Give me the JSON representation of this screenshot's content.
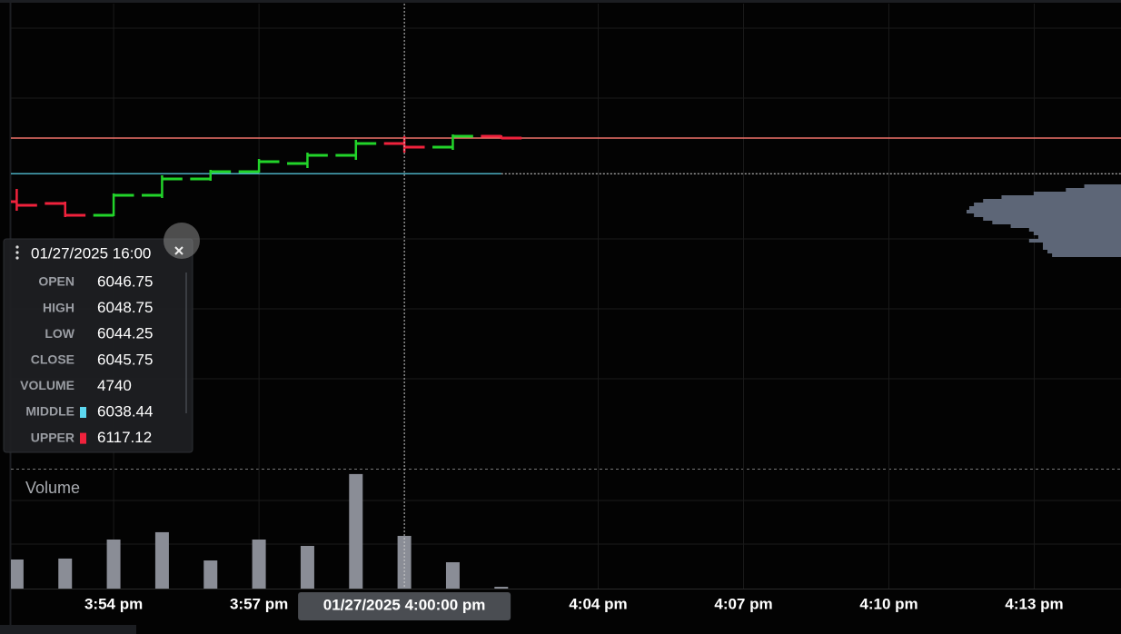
{
  "chart_data": {
    "type": "ohlc",
    "x": [
      952,
      953,
      954,
      955,
      956,
      957,
      958,
      959,
      960,
      961,
      962
    ],
    "open": [
      6030.75,
      6030.25,
      6027,
      6032.5,
      6037,
      6039,
      6041.25,
      6043.5,
      6046.75,
      6045.75,
      6048.75
    ],
    "high": [
      6034.25,
      6030.75,
      6033,
      6038,
      6039.5,
      6042.5,
      6044.25,
      6047.75,
      6048.75,
      6049.25,
      6049
    ],
    "low": [
      6028.25,
      6026.5,
      6026.75,
      6031.75,
      6036.5,
      6038.75,
      6040,
      6042.25,
      6044.25,
      6045,
      6048
    ],
    "close": [
      6029.75,
      6027,
      6032.5,
      6037,
      6039,
      6041.75,
      6043.5,
      6046.75,
      6045.75,
      6048.75,
      6048.25
    ],
    "up_color": "#22d42a",
    "down_color": "#f0223c",
    "last_price_color": "#f0736a",
    "xlim": [
      951.88,
      974.79
    ],
    "ylim": [
      5957.5,
      6085.25
    ],
    "xticks": [
      {
        "value": 954,
        "label": "3:54 pm"
      },
      {
        "value": 957,
        "label": "3:57 pm"
      },
      {
        "value": 964,
        "label": "4:04 pm"
      },
      {
        "value": 967,
        "label": "4:07 pm"
      },
      {
        "value": 970,
        "label": "4:10 pm"
      },
      {
        "value": 973,
        "label": "4:13 pm"
      }
    ],
    "grid": true,
    "indicators": [
      {
        "name": "MIDDLE",
        "value": 6038.44,
        "color": "#5cd8f0"
      },
      {
        "name": "UPPER",
        "value": 6117.12,
        "color": "#f0223c"
      }
    ],
    "volume": {
      "title": "Volume",
      "values": [
        2615,
        2700,
        4410,
        5070,
        2530,
        4410,
        3840,
        10300,
        4740,
        2370,
        160
      ],
      "color": "#8a8d96",
      "ylim": [
        0,
        10700
      ]
    },
    "volume_profile": {
      "prices": [
        6035,
        6034,
        6033,
        6032,
        6031,
        6030,
        6029,
        6028,
        6027,
        6026,
        6025,
        6024,
        6023,
        6022,
        6021,
        6020,
        6019,
        6018,
        6017,
        6016
      ],
      "values": [
        40,
        60,
        95,
        130,
        150,
        160,
        165,
        168,
        160,
        150,
        140,
        120,
        100,
        95,
        90,
        100,
        85,
        85,
        80,
        75
      ],
      "color": "#5d6677"
    },
    "crosshair": {
      "x": 960,
      "label": "01/27/2025 4:00:00 pm"
    },
    "tooltip": {
      "title": "01/27/2025 16:00",
      "labels": [
        "OPEN",
        "HIGH",
        "LOW",
        "CLOSE",
        "VOLUME"
      ]
    }
  }
}
